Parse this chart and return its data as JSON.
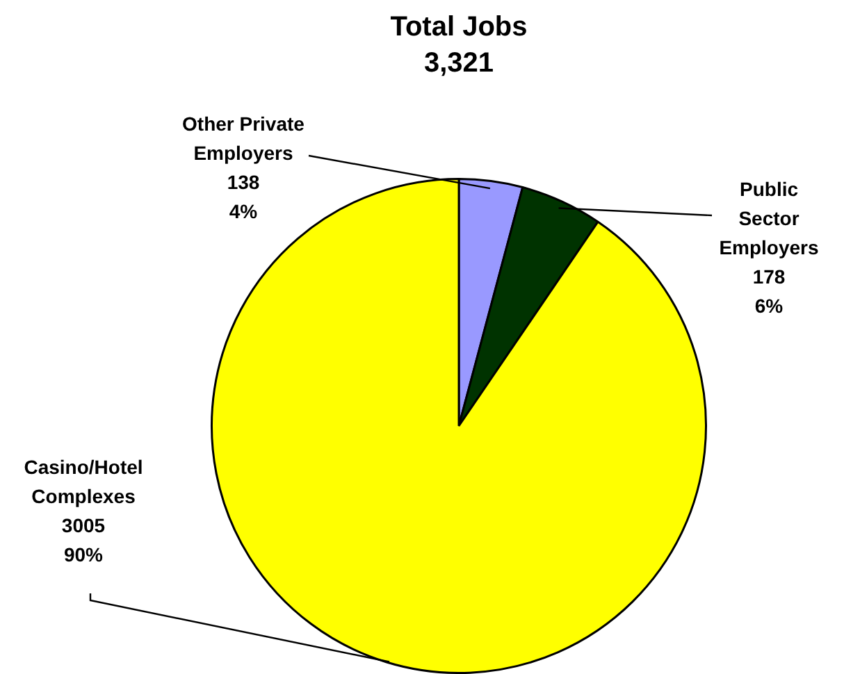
{
  "chart_data": {
    "type": "pie",
    "title": "Total Jobs",
    "subtitle": "3,321",
    "categories": [
      "Other Private\nEmployers",
      "Public\nSector\nEmployers",
      "Casino/Hotel\nComplexes"
    ],
    "values": [
      138,
      178,
      3005
    ],
    "colors": [
      "#9999ff",
      "#003300",
      "#ffff00"
    ],
    "value_labels": [
      "138\n4%",
      "178\n6%",
      "3005\n90%"
    ],
    "legend": false
  }
}
